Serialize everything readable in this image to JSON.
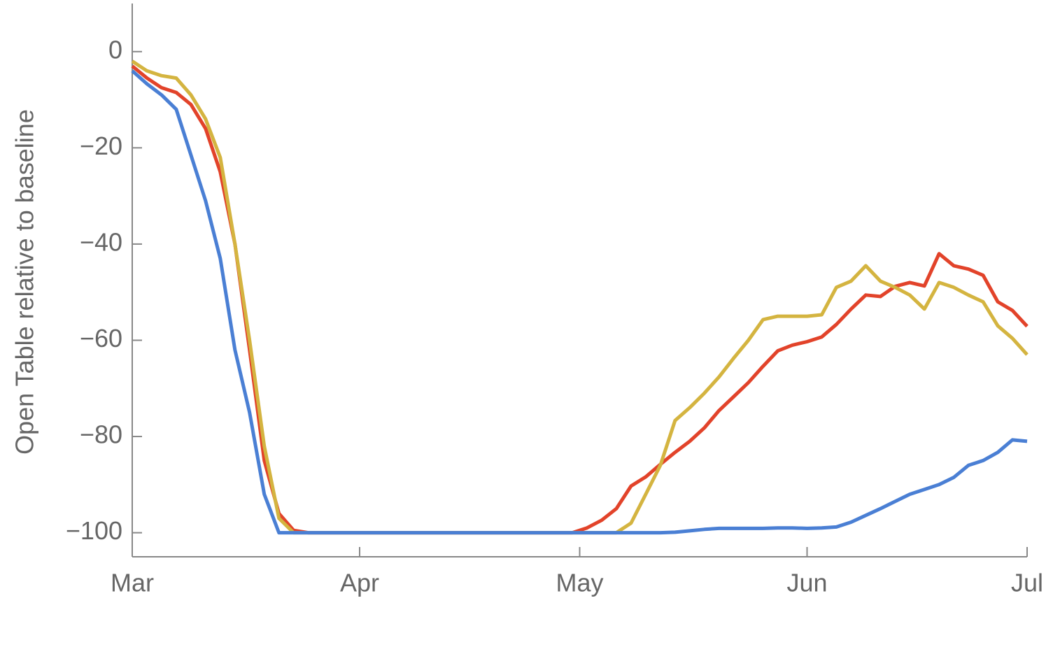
{
  "chart_data": {
    "type": "line",
    "ylabel": "Open Table relative to baseline",
    "x": [
      0,
      2,
      4,
      6,
      8,
      10,
      12,
      14,
      16,
      18,
      20,
      22,
      24,
      26,
      28,
      30,
      32,
      34,
      36,
      38,
      40,
      42,
      44,
      46,
      48,
      50,
      52,
      54,
      56,
      58,
      60,
      62,
      64,
      66,
      68,
      70,
      72,
      74,
      76,
      78,
      80,
      82,
      84,
      86,
      88,
      90,
      92,
      94,
      96,
      98,
      100,
      102,
      104,
      106,
      108,
      110,
      112,
      114,
      116,
      118,
      120,
      122
    ],
    "xlim": [
      0,
      122
    ],
    "xticks": [
      {
        "value": 0,
        "label": "Mar"
      },
      {
        "value": 31,
        "label": "Apr"
      },
      {
        "value": 61,
        "label": "May"
      },
      {
        "value": 92,
        "label": "Jun"
      },
      {
        "value": 122,
        "label": "Jul"
      }
    ],
    "ylim": [
      -105,
      10
    ],
    "yticks": [
      {
        "value": 0,
        "label": "0"
      },
      {
        "value": -20,
        "label": "−20"
      },
      {
        "value": -40,
        "label": "−40"
      },
      {
        "value": -60,
        "label": "−60"
      },
      {
        "value": -80,
        "label": "−80"
      },
      {
        "value": -100,
        "label": "−100"
      }
    ],
    "series": [
      {
        "color": "#e2432a",
        "values": [
          -3,
          -5.5,
          -7.5,
          -8.5,
          -11,
          -16,
          -25,
          -40,
          -62,
          -85,
          -96,
          -99.5,
          -100,
          -100,
          -100,
          -100,
          -100,
          -100,
          -100,
          -100,
          -100,
          -100,
          -100,
          -100,
          -100,
          -100,
          -100,
          -100,
          -100,
          -100,
          -100,
          -99,
          -97.4,
          -95,
          -90.3,
          -88.4,
          -85.8,
          -83.3,
          -81,
          -78.2,
          -74.6,
          -71.7,
          -68.8,
          -65.4,
          -62.2,
          -61,
          -60.3,
          -59.3,
          -56.7,
          -53.5,
          -50.6,
          -50.9,
          -48.8,
          -48,
          -48.7,
          -42,
          -44.5,
          -45.2,
          -46.5,
          -52,
          -53.8,
          -57.1
        ]
      },
      {
        "color": "#d4b440",
        "values": [
          -2,
          -4,
          -5,
          -5.5,
          -9,
          -14,
          -22,
          -40,
          -60,
          -82,
          -97,
          -100,
          -100,
          -100,
          -100,
          -100,
          -100,
          -100,
          -100,
          -100,
          -100,
          -100,
          -100,
          -100,
          -100,
          -100,
          -100,
          -100,
          -100,
          -100,
          -100,
          -100,
          -100,
          -100,
          -98,
          -92,
          -86,
          -76.7,
          -74,
          -71,
          -67.6,
          -63.7,
          -60,
          -55.7,
          -55,
          -55,
          -55,
          -54.7,
          -49,
          -47.7,
          -44.5,
          -47.7,
          -49,
          -50.6,
          -53.5,
          -48,
          -49,
          -50.6,
          -52,
          -57,
          -59.6,
          -63
        ]
      },
      {
        "color": "#4a7fd4",
        "values": [
          -4,
          -6.7,
          -9,
          -12,
          -21.5,
          -31,
          -43,
          -62,
          -75,
          -92,
          -100,
          -100,
          -100,
          -100,
          -100,
          -100,
          -100,
          -100,
          -100,
          -100,
          -100,
          -100,
          -100,
          -100,
          -100,
          -100,
          -100,
          -100,
          -100,
          -100,
          -100,
          -100,
          -100,
          -100,
          -100,
          -100,
          -100,
          -99.9,
          -99.6,
          -99.3,
          -99.1,
          -99.1,
          -99.1,
          -99.1,
          -99,
          -99,
          -99.1,
          -99,
          -98.8,
          -97.8,
          -96.4,
          -95,
          -93.5,
          -92,
          -91,
          -90,
          -88.5,
          -86,
          -85,
          -83.3,
          -80.7,
          -81
        ]
      }
    ]
  }
}
